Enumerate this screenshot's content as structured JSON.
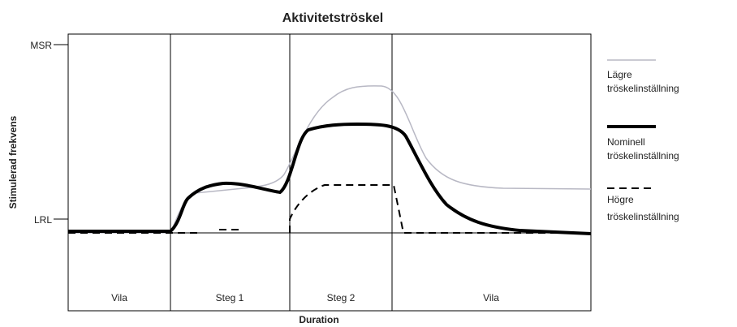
{
  "title": "Aktivitetströskel",
  "y_axis_label": "Stimulerad frekvens",
  "y_labels": [
    "MSR",
    "LRL"
  ],
  "x_axis_label": "Duration",
  "phases": [
    "Vila",
    "Steg 1",
    "Steg 2",
    "Vila"
  ],
  "legend": [
    {
      "line1": "Lägre",
      "line2": "tröskelinställning"
    },
    {
      "line1": "Nominell",
      "line2": "tröskelinställning"
    },
    {
      "line1": "Högre",
      "line2": "tröskelinställning"
    }
  ]
}
